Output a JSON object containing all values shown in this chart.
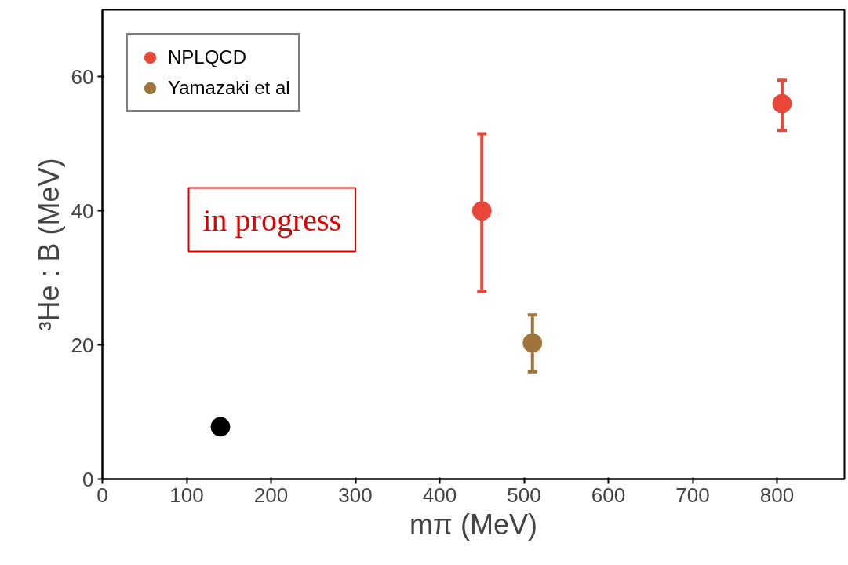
{
  "chart_data": {
    "type": "scatter",
    "xlabel": "mπ (MeV)",
    "ylabel": "³He : B (MeV)",
    "xlim": [
      0,
      880
    ],
    "ylim": [
      0,
      70
    ],
    "xticks": [
      0,
      100,
      200,
      300,
      400,
      500,
      600,
      700,
      800
    ],
    "yticks": [
      0,
      20,
      40,
      60
    ],
    "grid": false,
    "legend": "top left",
    "marker": "circle",
    "annotations": [
      "in progress"
    ],
    "series": [
      {
        "color": "#000000",
        "x": [
          140
        ],
        "values": [
          7.8
        ]
      },
      {
        "name": "NPLQCD",
        "color": "#e8473a",
        "x": [
          450,
          806
        ],
        "values": [
          40,
          56
        ],
        "errors": [
          [
            28,
            51.5
          ],
          [
            52,
            59.5
          ]
        ]
      },
      {
        "name": "Yamazaki et al",
        "color": "#a0733a",
        "x": [
          510
        ],
        "values": [
          20.3
        ],
        "errors": [
          [
            16,
            24.5
          ]
        ]
      }
    ]
  }
}
